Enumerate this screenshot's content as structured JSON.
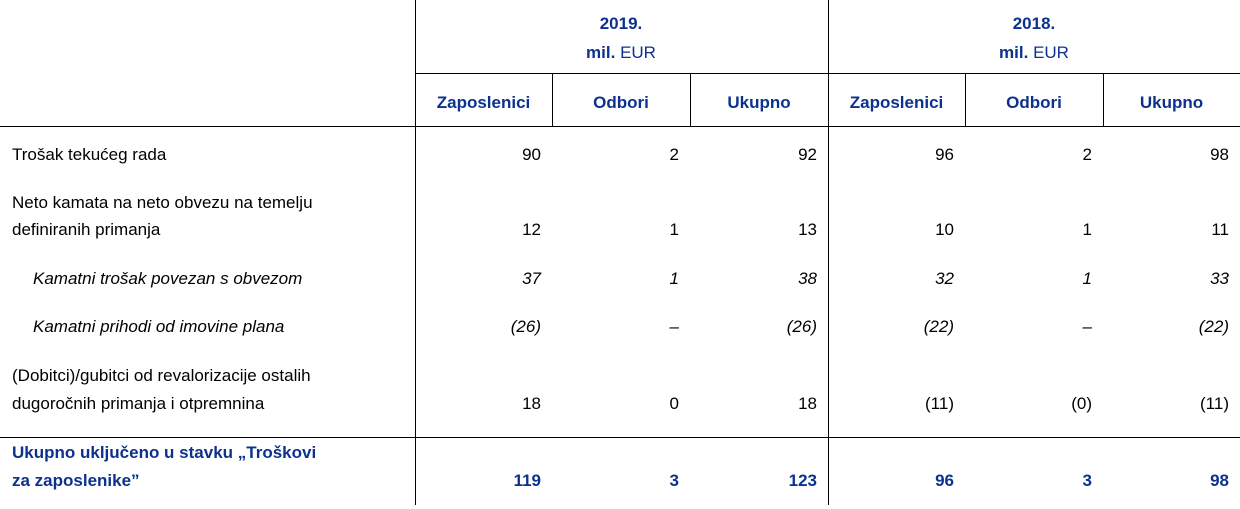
{
  "header": {
    "years": [
      {
        "year": "2019.",
        "unit_bold": "mil.",
        "unit": "EUR",
        "columns": [
          "Zaposlenici",
          "Odbori",
          "Ukupno"
        ]
      },
      {
        "year": "2018.",
        "unit_bold": "mil.",
        "unit": "EUR",
        "columns": [
          "Zaposlenici",
          "Odbori",
          "Ukupno"
        ]
      }
    ]
  },
  "table": {
    "rows": [
      {
        "label_lines": [
          "Trošak tekućeg rada"
        ],
        "cells": [
          90,
          2,
          92,
          96,
          2,
          98
        ]
      },
      {
        "label_lines": [
          "Neto kamata na neto obvezu na temelju",
          "definiranih primanja"
        ],
        "cells": [
          12,
          1,
          13,
          10,
          1,
          11
        ]
      },
      {
        "label_lines": [
          "Kamatni trošak povezan s obvezom"
        ],
        "italic": true,
        "cells": [
          37,
          1,
          38,
          32,
          1,
          33
        ]
      },
      {
        "label_lines": [
          "Kamatni prihodi od imovine plana"
        ],
        "italic": true,
        "cells": [
          "(26)",
          "–",
          "(26)",
          "(22)",
          "–",
          "(22)"
        ]
      },
      {
        "label_lines": [
          "(Dobitci)/gubitci od revalorizacije ostalih",
          "dugoročnih primanja i otpremnina"
        ],
        "cells": [
          18,
          0,
          18,
          "(11)",
          "(0)",
          "(11)"
        ]
      },
      {
        "label_lines": [
          "Ukupno uključeno u stavku „Troškovi",
          "za zaposlenike”"
        ],
        "total": true,
        "cells": [
          119,
          3,
          123,
          96,
          3,
          98
        ]
      }
    ]
  }
}
